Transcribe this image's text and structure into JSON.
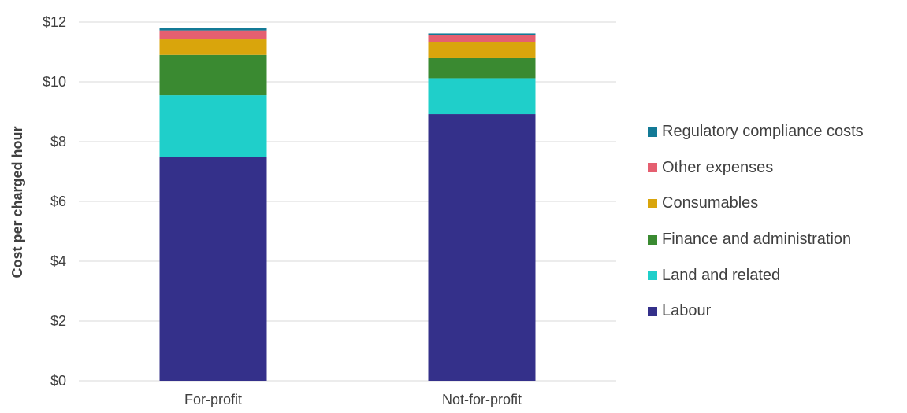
{
  "chart_data": {
    "type": "bar",
    "stacked": true,
    "categories": [
      "For-profit",
      "Not-for-profit"
    ],
    "ylabel": "Cost per charged hour",
    "ylim": [
      0,
      12
    ],
    "yticks": [
      0,
      2,
      4,
      6,
      8,
      10,
      12
    ],
    "ytick_labels": [
      "$0",
      "$2",
      "$4",
      "$6",
      "$8",
      "$10",
      "$12"
    ],
    "grid": true,
    "legend_position": "right",
    "series": [
      {
        "name": "Labour",
        "color": "#34308a",
        "values": [
          7.48,
          8.92
        ]
      },
      {
        "name": "Land and related",
        "color": "#1fcfca",
        "values": [
          2.07,
          1.2
        ]
      },
      {
        "name": "Finance and administration",
        "color": "#3a8a31",
        "values": [
          1.35,
          0.67
        ]
      },
      {
        "name": "Consumables",
        "color": "#d9a50c",
        "values": [
          0.52,
          0.55
        ]
      },
      {
        "name": "Other expenses",
        "color": "#e55f70",
        "values": [
          0.3,
          0.22
        ]
      },
      {
        "name": "Regulatory compliance costs",
        "color": "#137a96",
        "values": [
          0.07,
          0.06
        ]
      }
    ]
  }
}
